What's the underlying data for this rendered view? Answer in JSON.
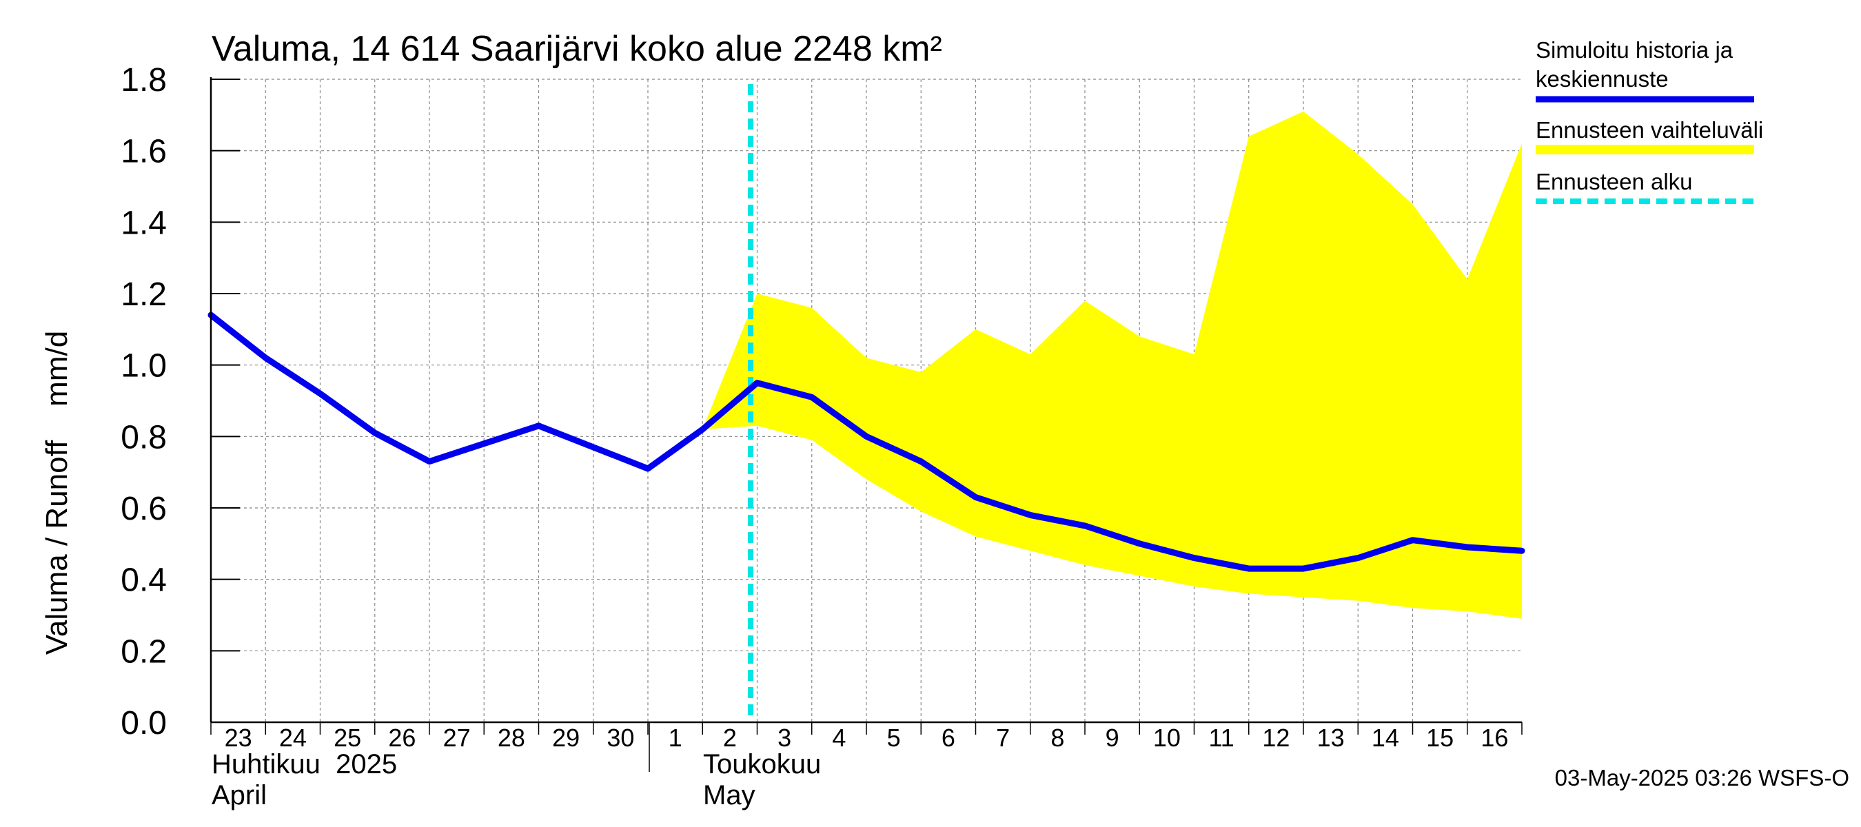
{
  "chart_data": {
    "type": "line",
    "title": "Valuma, 14 614 Saarijärvi koko alue 2248 km²",
    "ylabel": "Valuma / Runoff    mm/d",
    "ylim": [
      0.0,
      1.8
    ],
    "yticks": [
      "0.0",
      "0.2",
      "0.4",
      "0.6",
      "0.8",
      "1.0",
      "1.2",
      "1.4",
      "1.6",
      "1.8"
    ],
    "grid": true,
    "legend_position": "right",
    "x_tick_labels": [
      "23",
      "24",
      "25",
      "26",
      "27",
      "28",
      "29",
      "30",
      "1",
      "2",
      "3",
      "4",
      "5",
      "6",
      "7",
      "8",
      "9",
      "10",
      "11",
      "12",
      "13",
      "14",
      "15",
      "16"
    ],
    "month_labels": [
      {
        "fi": "Huhtikuu  2025",
        "en": "April"
      },
      {
        "fi": "Toukokuu",
        "en": "May"
      }
    ],
    "forecast_start": "2025-05-03",
    "footer": "03-May-2025 03:26 WSFS-O",
    "colors": {
      "simulated": "#0000ee",
      "range": "#ffff00",
      "forecast_start": "#00e5e5",
      "grid": "#888888"
    },
    "series": [
      {
        "name": "Simuloitu historia ja keskiennuste",
        "x": [
          "2025-04-23",
          "2025-04-24",
          "2025-04-25",
          "2025-04-26",
          "2025-04-27",
          "2025-04-28",
          "2025-04-29",
          "2025-04-30",
          "2025-05-01",
          "2025-05-02",
          "2025-05-03",
          "2025-05-04",
          "2025-05-05",
          "2025-05-06",
          "2025-05-07",
          "2025-05-08",
          "2025-05-09",
          "2025-05-10",
          "2025-05-11",
          "2025-05-12",
          "2025-05-13",
          "2025-05-14",
          "2025-05-15",
          "2025-05-16",
          "2025-05-17"
        ],
        "values": [
          1.14,
          1.02,
          0.92,
          0.81,
          0.73,
          0.78,
          0.83,
          0.77,
          0.71,
          0.82,
          0.95,
          0.91,
          0.8,
          0.73,
          0.63,
          0.58,
          0.55,
          0.5,
          0.46,
          0.43,
          0.43,
          0.46,
          0.51,
          0.49,
          0.48
        ]
      },
      {
        "name": "Ennusteen vaihteluväli",
        "x": [
          "2025-05-02",
          "2025-05-03",
          "2025-05-04",
          "2025-05-05",
          "2025-05-06",
          "2025-05-07",
          "2025-05-08",
          "2025-05-09",
          "2025-05-10",
          "2025-05-11",
          "2025-05-12",
          "2025-05-13",
          "2025-05-14",
          "2025-05-15",
          "2025-05-16",
          "2025-05-17"
        ],
        "upper": [
          0.82,
          1.2,
          1.16,
          1.02,
          0.98,
          1.1,
          1.03,
          1.18,
          1.08,
          1.03,
          1.64,
          1.71,
          1.59,
          1.45,
          1.24,
          1.62
        ],
        "lower": [
          0.82,
          0.83,
          0.79,
          0.68,
          0.59,
          0.52,
          0.48,
          0.44,
          0.41,
          0.38,
          0.36,
          0.35,
          0.34,
          0.32,
          0.31,
          0.29
        ]
      }
    ]
  },
  "legend": {
    "simulated_line1": "Simuloitu historia ja",
    "simulated_line2": "keskiennuste",
    "range": "Ennusteen vaihteluväli",
    "forecast_start": "Ennusteen alku"
  }
}
